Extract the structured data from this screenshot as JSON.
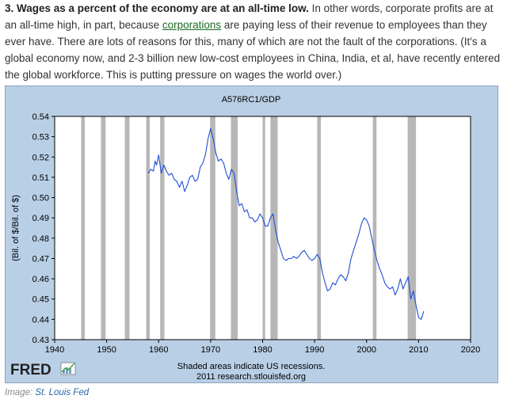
{
  "article": {
    "heading": "3. Wages as a percent of the economy are at an all-time low.",
    "text_before_link": " In other words, corporate profits are at an all-time high, in part, because ",
    "link_text": "corporations",
    "text_after_link": " are paying less of their revenue to employees than they ever have. There are lots of reasons for this, many of which are not the fault of the corporations. (It's a global economy now, and 2-3 billion new low-cost employees in China, India, et al, have recently entered the global workforce. This is putting pressure on wages the world over.)"
  },
  "chart": {
    "logo_text": "FRED",
    "footer_line1": "Shaded areas indicate US recessions.",
    "footer_line2": "2011 research.stlouisfed.org"
  },
  "caption": {
    "label": "Image: ",
    "source": "St. Louis Fed"
  },
  "colors": {
    "frame_bg": "#b9cfe6",
    "plot_bg": "#ffffff",
    "recession": "#b7b7b7",
    "line": "#1f4fd6",
    "link": "#1a6b22"
  },
  "chart_data": {
    "type": "line",
    "title": "A576RC1/GDP",
    "xlabel": "",
    "ylabel": "(Bil. of $/Bil. of $)",
    "xlim": [
      1940,
      2020
    ],
    "ylim": [
      0.43,
      0.54
    ],
    "x_ticks": [
      1940,
      1950,
      1960,
      1970,
      1980,
      1990,
      2000,
      2010,
      2020
    ],
    "y_ticks": [
      0.43,
      0.44,
      0.45,
      0.46,
      0.47,
      0.48,
      0.49,
      0.5,
      0.51,
      0.52,
      0.53,
      0.54
    ],
    "grid": false,
    "recessions": [
      [
        1945.1,
        1945.8
      ],
      [
        1948.9,
        1949.8
      ],
      [
        1953.5,
        1954.4
      ],
      [
        1957.6,
        1958.3
      ],
      [
        1960.3,
        1961.1
      ],
      [
        1969.9,
        1970.9
      ],
      [
        1973.9,
        1975.2
      ],
      [
        1980.0,
        1980.5
      ],
      [
        1981.5,
        1982.9
      ],
      [
        1990.5,
        1991.2
      ],
      [
        2001.2,
        2001.9
      ],
      [
        2007.9,
        2009.5
      ]
    ],
    "series": [
      {
        "x": [
          1958.0,
          1958.5,
          1959.0,
          1959.3,
          1959.6,
          1960.0,
          1960.5,
          1961.0,
          1961.5,
          1962.0,
          1962.5,
          1963.0,
          1963.5,
          1964.0,
          1964.5,
          1965.0,
          1965.5,
          1966.0,
          1966.5,
          1967.0,
          1967.5,
          1968.0,
          1968.5,
          1969.0,
          1969.5,
          1970.0,
          1970.5,
          1971.0,
          1971.5,
          1972.0,
          1972.5,
          1973.0,
          1973.5,
          1974.0,
          1974.5,
          1975.0,
          1975.5,
          1976.0,
          1976.5,
          1977.0,
          1977.5,
          1978.0,
          1978.5,
          1979.0,
          1979.5,
          1980.0,
          1980.5,
          1981.0,
          1981.5,
          1982.0,
          1982.5,
          1983.0,
          1983.5,
          1984.0,
          1984.5,
          1985.0,
          1985.5,
          1986.0,
          1986.5,
          1987.0,
          1987.5,
          1988.0,
          1988.5,
          1989.0,
          1989.5,
          1990.0,
          1990.5,
          1991.0,
          1991.5,
          1992.0,
          1992.5,
          1993.0,
          1993.5,
          1994.0,
          1994.5,
          1995.0,
          1995.5,
          1996.0,
          1996.5,
          1997.0,
          1997.5,
          1998.0,
          1998.5,
          1999.0,
          1999.5,
          2000.0,
          2000.5,
          2001.0,
          2001.5,
          2002.0,
          2002.5,
          2003.0,
          2003.5,
          2004.0,
          2004.5,
          2005.0,
          2005.5,
          2006.0,
          2006.5,
          2007.0,
          2007.5,
          2008.0,
          2008.5,
          2009.0,
          2009.5,
          2010.0,
          2010.5,
          2011.0
        ],
        "values": [
          0.512,
          0.514,
          0.513,
          0.518,
          0.516,
          0.521,
          0.512,
          0.516,
          0.513,
          0.511,
          0.512,
          0.509,
          0.508,
          0.505,
          0.508,
          0.503,
          0.506,
          0.51,
          0.511,
          0.508,
          0.509,
          0.515,
          0.517,
          0.521,
          0.529,
          0.534,
          0.529,
          0.522,
          0.518,
          0.519,
          0.517,
          0.512,
          0.509,
          0.514,
          0.512,
          0.503,
          0.496,
          0.497,
          0.493,
          0.494,
          0.49,
          0.49,
          0.488,
          0.489,
          0.492,
          0.49,
          0.486,
          0.486,
          0.49,
          0.492,
          0.484,
          0.478,
          0.474,
          0.47,
          0.469,
          0.47,
          0.47,
          0.471,
          0.47,
          0.471,
          0.473,
          0.474,
          0.472,
          0.47,
          0.469,
          0.47,
          0.472,
          0.47,
          0.463,
          0.458,
          0.454,
          0.455,
          0.458,
          0.457,
          0.46,
          0.462,
          0.461,
          0.459,
          0.463,
          0.47,
          0.474,
          0.478,
          0.482,
          0.487,
          0.49,
          0.489,
          0.486,
          0.48,
          0.474,
          0.469,
          0.465,
          0.462,
          0.458,
          0.456,
          0.455,
          0.456,
          0.452,
          0.455,
          0.46,
          0.455,
          0.458,
          0.461,
          0.45,
          0.454,
          0.447,
          0.441,
          0.44,
          0.444
        ]
      }
    ]
  }
}
